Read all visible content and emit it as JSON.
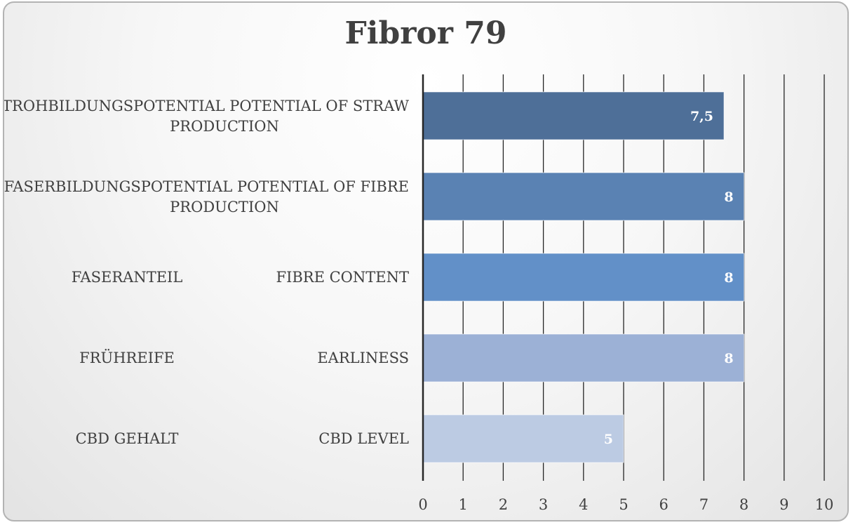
{
  "chart_data": {
    "type": "bar",
    "orientation": "horizontal",
    "title": "Fibror 79",
    "xlabel": "",
    "ylabel": "",
    "xlim": [
      0,
      10
    ],
    "ticks": [
      "0",
      "1",
      "2",
      "3",
      "4",
      "5",
      "6",
      "7",
      "8",
      "9",
      "10"
    ],
    "grid": true,
    "legend": "none",
    "categories": [
      {
        "label_lines": [
          "STROHBILDUNGSPOTENTIAL POTENTIAL OF STRAW",
          "PRODUCTION"
        ],
        "left_label": "",
        "value": 7.5,
        "value_label": "7,5",
        "color": "#4e6f98"
      },
      {
        "label_lines": [
          "FASERBILDUNGSPOTENTIAL POTENTIAL OF FIBRE",
          "PRODUCTION"
        ],
        "left_label": "",
        "value": 8,
        "value_label": "8",
        "color": "#5a82b3"
      },
      {
        "label_lines": [
          "FIBRE CONTENT"
        ],
        "left_label": "FASERANTEIL",
        "value": 8,
        "value_label": "8",
        "color": "#6290c8"
      },
      {
        "label_lines": [
          "EARLINESS"
        ],
        "left_label": "FRÜHREIFE",
        "value": 8,
        "value_label": "8",
        "color": "#9cb1d6"
      },
      {
        "label_lines": [
          "CBD LEVEL"
        ],
        "left_label": "CBD GEHALT",
        "value": 5,
        "value_label": "5",
        "color": "#bccbe3"
      }
    ]
  }
}
